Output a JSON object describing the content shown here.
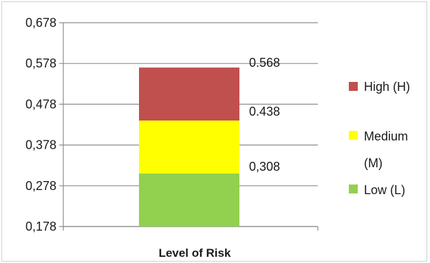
{
  "chart_data": {
    "type": "bar",
    "stacked": true,
    "categories": [
      "Level of Risk"
    ],
    "series": [
      {
        "name": "Low (L)",
        "from": 0.178,
        "to": 0.308,
        "color": "#92d050"
      },
      {
        "name": "Medium (M)",
        "from": 0.308,
        "to": 0.438,
        "color": "#ffff00"
      },
      {
        "name": "High (H)",
        "from": 0.438,
        "to": 0.568,
        "color": "#c0504d"
      }
    ],
    "data_labels": [
      "0,308",
      "0.438",
      "0.568"
    ],
    "yticks": [
      "0,178",
      "0,278",
      "0,378",
      "0,478",
      "0,578",
      "0,678"
    ],
    "ylim": [
      0.178,
      0.678
    ],
    "xlabel": "Level of Risk",
    "grid": true,
    "legend": {
      "position": "right",
      "items": [
        {
          "label_lines": [
            "High (H)"
          ],
          "color": "#c0504d"
        },
        {
          "label_lines": [
            "Medium",
            "(M)"
          ],
          "color": "#ffff00"
        },
        {
          "label_lines": [
            "Low (L)"
          ],
          "color": "#92d050"
        }
      ]
    }
  }
}
